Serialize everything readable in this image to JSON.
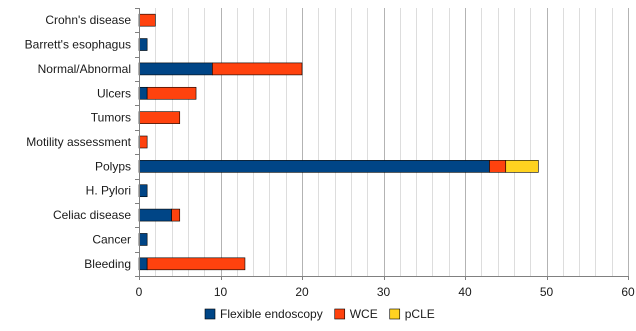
{
  "chart_data": {
    "type": "bar",
    "orientation": "horizontal",
    "stacked": true,
    "title": "",
    "xlabel": "",
    "ylabel": "",
    "xlim": [
      0,
      60
    ],
    "x_major_ticks": [
      0,
      10,
      20,
      30,
      40,
      50,
      60
    ],
    "x_minor_step": 2,
    "grid": true,
    "legend_position": "bottom",
    "categories": [
      "Crohn's disease",
      "Barrett's esophagus",
      "Normal/Abnormal",
      "Ulcers",
      "Tumors",
      "Motility assessment",
      "Polyps",
      "H. Pylori",
      "Celiac disease",
      "Cancer",
      "Bleeding"
    ],
    "series": [
      {
        "name": "Flexible endoscopy",
        "color": "#004586",
        "values": [
          0,
          1,
          9,
          1,
          0,
          0,
          43,
          1,
          4,
          1,
          1
        ]
      },
      {
        "name": "WCE",
        "color": "#ff420e",
        "values": [
          2,
          0,
          11,
          6,
          5,
          1,
          2,
          0,
          1,
          0,
          12
        ]
      },
      {
        "name": "pCLE",
        "color": "#ffd320",
        "values": [
          0,
          0,
          0,
          0,
          0,
          0,
          4,
          0,
          0,
          0,
          0
        ]
      }
    ]
  }
}
